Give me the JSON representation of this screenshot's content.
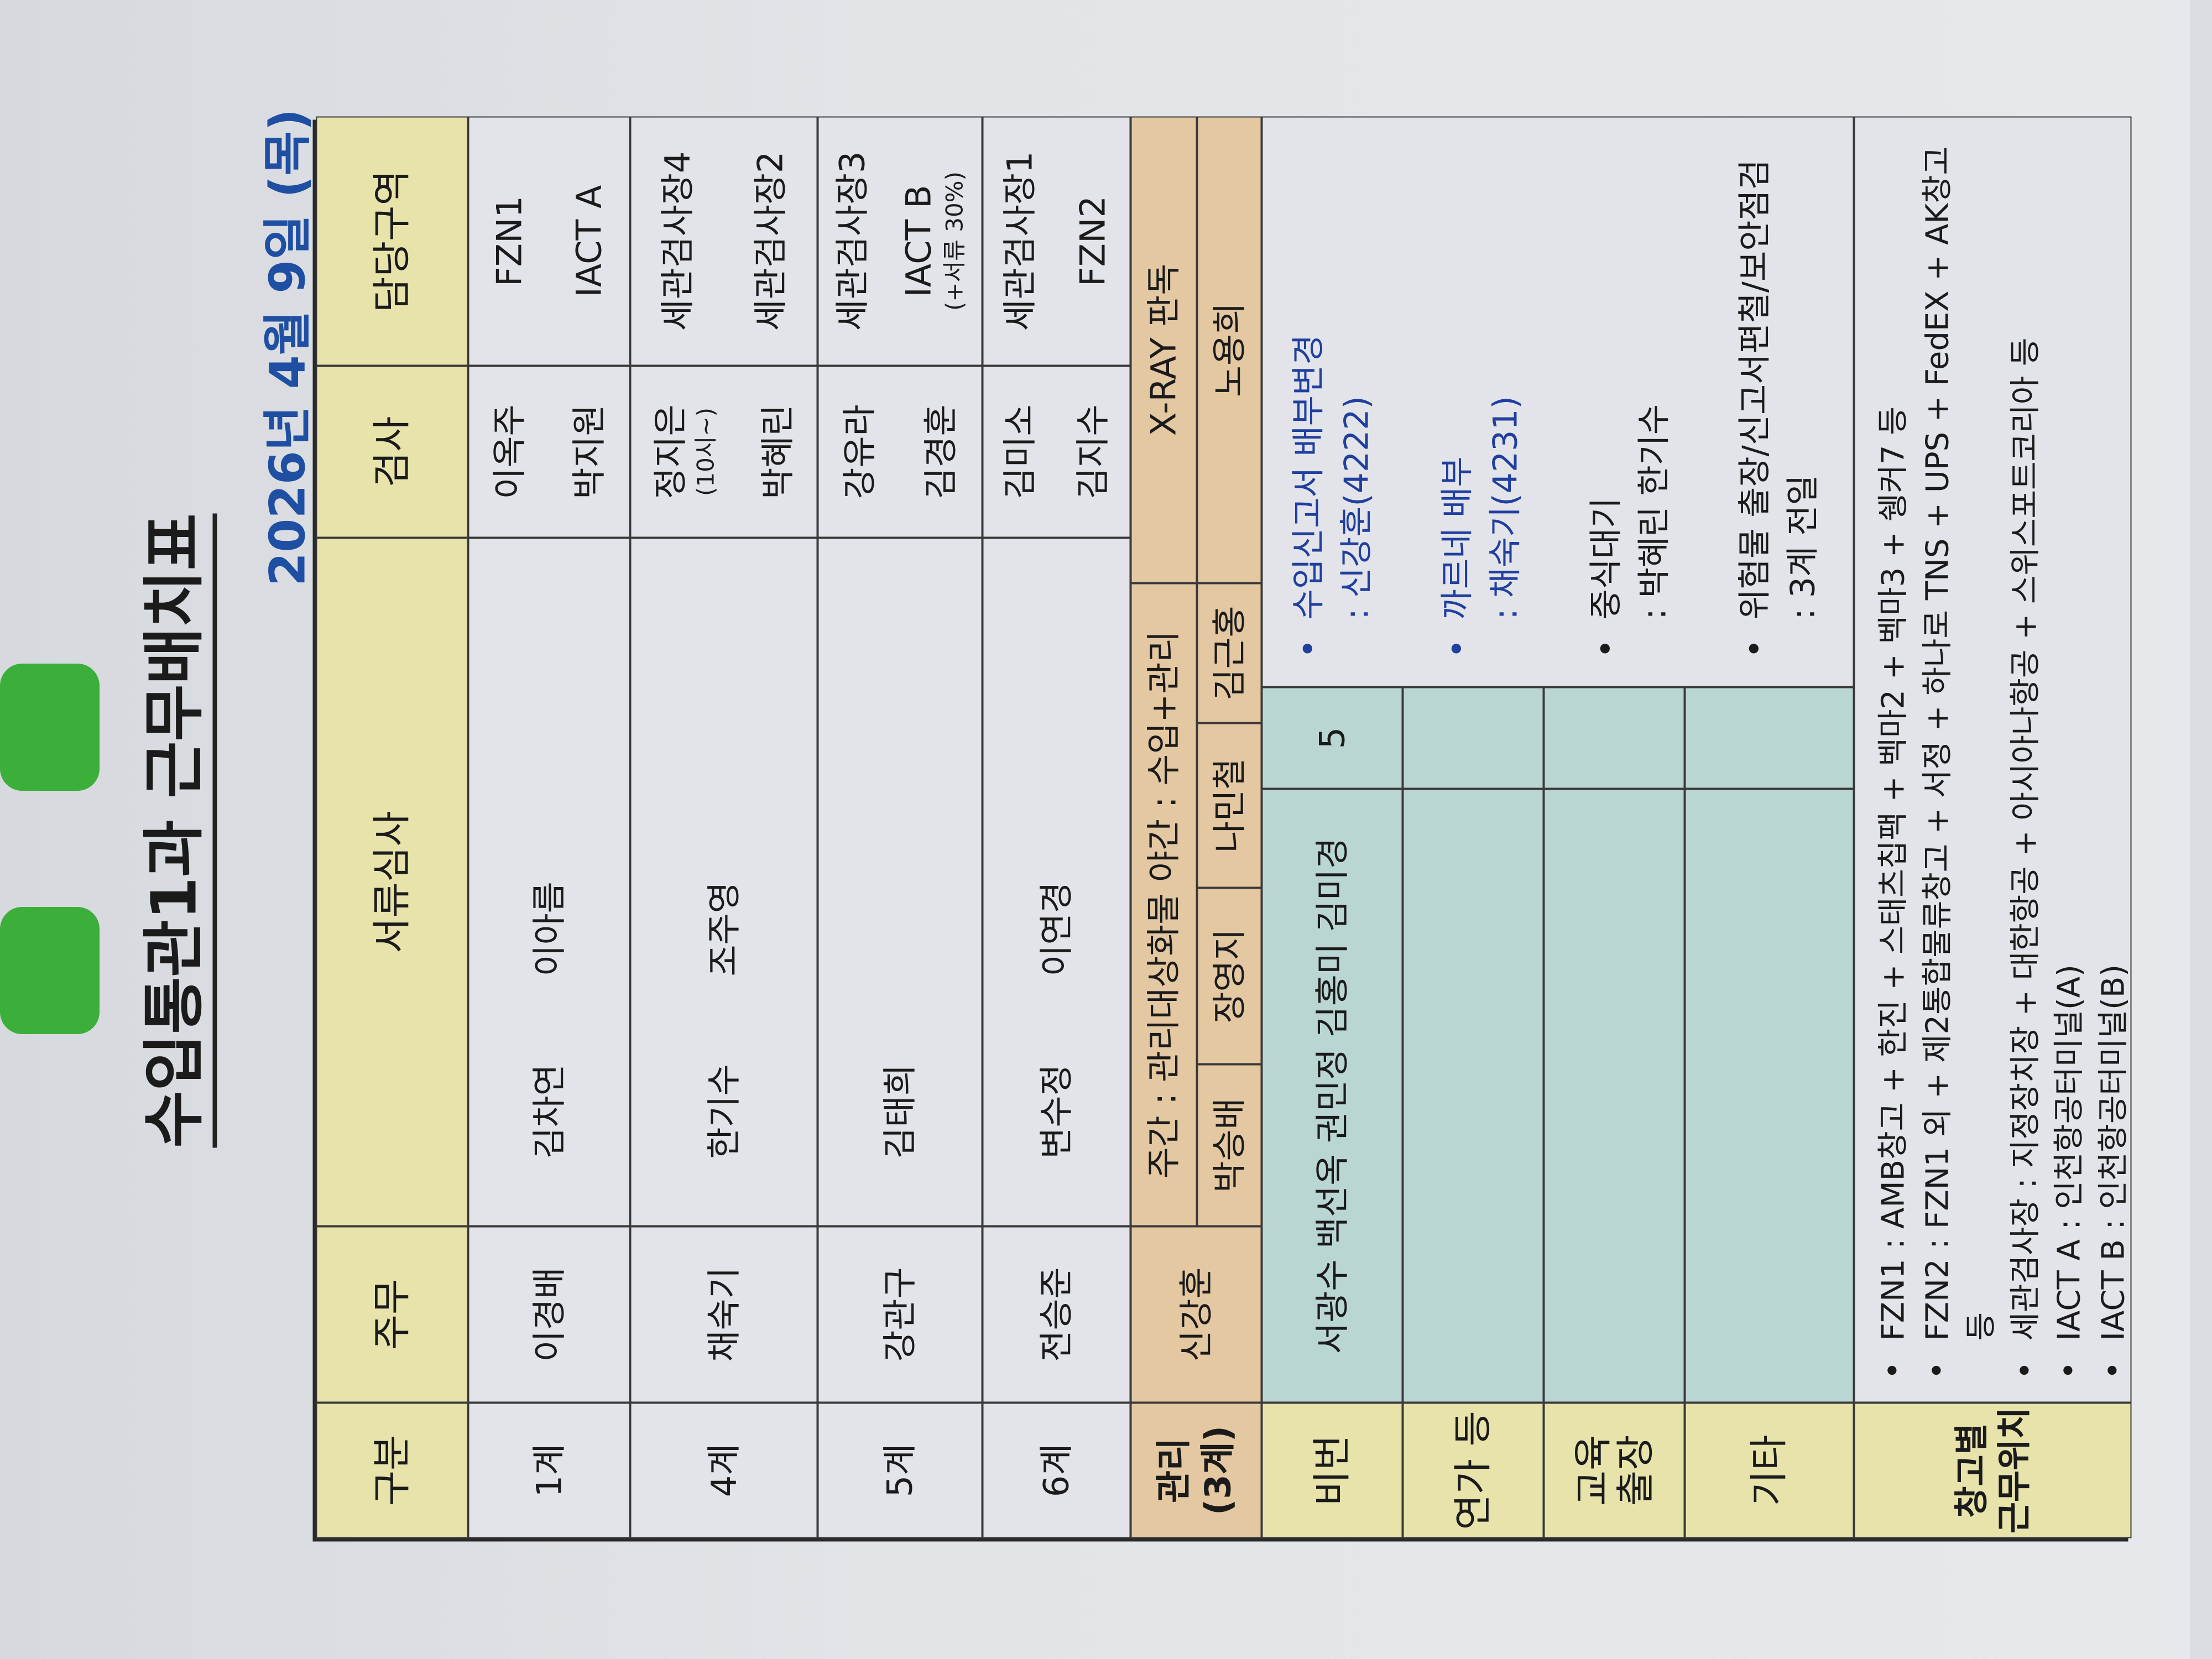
{
  "title": "수입통관1과 근무배치표",
  "date": "2026년 4월 9일 (목)",
  "headers": {
    "gubun": "구분",
    "jumu": "주무",
    "docs": "서류심사",
    "inspect": "검사",
    "zone": "담당구역"
  },
  "rows": [
    {
      "gubun": "1계",
      "jumu": "이경배",
      "docs": [
        "김차연",
        "이아름"
      ],
      "inspect": [
        "이옥주",
        "박지원"
      ],
      "zone": [
        "FZN1",
        "IACT A"
      ]
    },
    {
      "gubun": "4계",
      "jumu": "채숙기",
      "docs": [
        "한기수",
        "조주영"
      ],
      "inspect": [
        "정지은",
        "박혜린"
      ],
      "inspect_note": "(10시~)",
      "zone": [
        "세관검사장4",
        "세관검사장2"
      ]
    },
    {
      "gubun": "5계",
      "jumu": "강관구",
      "docs": [
        "김태희",
        ""
      ],
      "inspect": [
        "강유라",
        "김경훈"
      ],
      "zone": [
        "세관검사장3",
        "IACT B"
      ],
      "zone_note": "(+서류 30%)"
    },
    {
      "gubun": "6계",
      "jumu": "전승준",
      "docs": [
        "변수정",
        "이연경"
      ],
      "inspect": [
        "김미소",
        "김지수"
      ],
      "zone": [
        "세관검사장1",
        "FZN2"
      ]
    }
  ],
  "mgmt": {
    "gubun": "관리\n(3계)",
    "jumu": "신강훈",
    "desc": "주간 : 관리대상화물 야간 : 수입+관리",
    "xray": "X-RAY 판독",
    "members": [
      "박승배",
      "장영지",
      "나민철",
      "김근홍",
      "노용희"
    ]
  },
  "off": {
    "label": "비번",
    "names": "서광수 백선옥 권민정 김홍미 김미경",
    "count": "5"
  },
  "leave": {
    "label": "연가 등"
  },
  "training": {
    "label": "교육\n출장"
  },
  "etc": {
    "label": "기타"
  },
  "remarks": [
    {
      "line1": "수입신고서 배부변경",
      "line2": ": 신강훈(4222)",
      "color": "#203f9e"
    },
    {
      "line1": "까르네 배부",
      "line2": ": 채숙기(4231)",
      "color": "#203f9e"
    },
    {
      "line1": "중식대기",
      "line2": ": 박혜린 한기수",
      "color": "#1b1b1b"
    },
    {
      "line1": "위험물 출장/신고서편철/보안점검",
      "line2": ": 3계 전일",
      "color": "#1b1b1b"
    }
  ],
  "warehouse": {
    "label": "창고별\n근무위치",
    "notes": [
      "FZN1 : AMB창고 + 한진 + 스태츠칩팩 + 벡마2 + 벡마3 + 쉥커7 등",
      "FZN2 : FZN1 외 + 제2통합물류창고 + 서정 + 하나로 TNS + UPS + FedEX + AK창고 등",
      "세관검사장 : 지정장치장 + 대한항공 + 아시아나항공 + 스위스포트코리아 등",
      "IACT A : 인천항공터미널(A)",
      "IACT B : 인천항공터미널(B)"
    ]
  },
  "colors": {
    "header": "#e7e3ab",
    "mgmt": "#e3c8a2",
    "teal": "#bad6d3",
    "date": "#1e4fa3",
    "remark_blue": "#203f9e"
  }
}
